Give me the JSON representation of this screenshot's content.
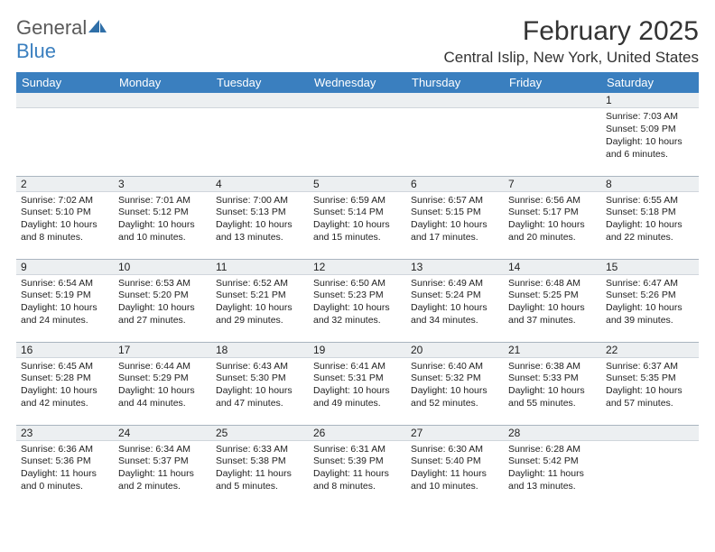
{
  "logo": {
    "general": "General",
    "blue": "Blue"
  },
  "title": "February 2025",
  "location": "Central Islip, New York, United States",
  "weekdays": [
    "Sunday",
    "Monday",
    "Tuesday",
    "Wednesday",
    "Thursday",
    "Friday",
    "Saturday"
  ],
  "colors": {
    "header_bg": "#3a7fbf",
    "header_text": "#ffffff",
    "daynum_bg": "#eceff1",
    "border": "#aab5c0",
    "text": "#222222",
    "logo_gray": "#5a5a5a",
    "logo_blue": "#3a7fbf"
  },
  "fonts": {
    "title_size": 30,
    "location_size": 17,
    "weekday_size": 13,
    "daynum_size": 12,
    "cell_size": 10.5
  },
  "first_weekday_index": 6,
  "days_in_month": 28,
  "days": [
    {
      "n": 1,
      "sunrise": "7:03 AM",
      "sunset": "5:09 PM",
      "dl_h": 10,
      "dl_m": 6
    },
    {
      "n": 2,
      "sunrise": "7:02 AM",
      "sunset": "5:10 PM",
      "dl_h": 10,
      "dl_m": 8
    },
    {
      "n": 3,
      "sunrise": "7:01 AM",
      "sunset": "5:12 PM",
      "dl_h": 10,
      "dl_m": 10
    },
    {
      "n": 4,
      "sunrise": "7:00 AM",
      "sunset": "5:13 PM",
      "dl_h": 10,
      "dl_m": 13
    },
    {
      "n": 5,
      "sunrise": "6:59 AM",
      "sunset": "5:14 PM",
      "dl_h": 10,
      "dl_m": 15
    },
    {
      "n": 6,
      "sunrise": "6:57 AM",
      "sunset": "5:15 PM",
      "dl_h": 10,
      "dl_m": 17
    },
    {
      "n": 7,
      "sunrise": "6:56 AM",
      "sunset": "5:17 PM",
      "dl_h": 10,
      "dl_m": 20
    },
    {
      "n": 8,
      "sunrise": "6:55 AM",
      "sunset": "5:18 PM",
      "dl_h": 10,
      "dl_m": 22
    },
    {
      "n": 9,
      "sunrise": "6:54 AM",
      "sunset": "5:19 PM",
      "dl_h": 10,
      "dl_m": 24
    },
    {
      "n": 10,
      "sunrise": "6:53 AM",
      "sunset": "5:20 PM",
      "dl_h": 10,
      "dl_m": 27
    },
    {
      "n": 11,
      "sunrise": "6:52 AM",
      "sunset": "5:21 PM",
      "dl_h": 10,
      "dl_m": 29
    },
    {
      "n": 12,
      "sunrise": "6:50 AM",
      "sunset": "5:23 PM",
      "dl_h": 10,
      "dl_m": 32
    },
    {
      "n": 13,
      "sunrise": "6:49 AM",
      "sunset": "5:24 PM",
      "dl_h": 10,
      "dl_m": 34
    },
    {
      "n": 14,
      "sunrise": "6:48 AM",
      "sunset": "5:25 PM",
      "dl_h": 10,
      "dl_m": 37
    },
    {
      "n": 15,
      "sunrise": "6:47 AM",
      "sunset": "5:26 PM",
      "dl_h": 10,
      "dl_m": 39
    },
    {
      "n": 16,
      "sunrise": "6:45 AM",
      "sunset": "5:28 PM",
      "dl_h": 10,
      "dl_m": 42
    },
    {
      "n": 17,
      "sunrise": "6:44 AM",
      "sunset": "5:29 PM",
      "dl_h": 10,
      "dl_m": 44
    },
    {
      "n": 18,
      "sunrise": "6:43 AM",
      "sunset": "5:30 PM",
      "dl_h": 10,
      "dl_m": 47
    },
    {
      "n": 19,
      "sunrise": "6:41 AM",
      "sunset": "5:31 PM",
      "dl_h": 10,
      "dl_m": 49
    },
    {
      "n": 20,
      "sunrise": "6:40 AM",
      "sunset": "5:32 PM",
      "dl_h": 10,
      "dl_m": 52
    },
    {
      "n": 21,
      "sunrise": "6:38 AM",
      "sunset": "5:33 PM",
      "dl_h": 10,
      "dl_m": 55
    },
    {
      "n": 22,
      "sunrise": "6:37 AM",
      "sunset": "5:35 PM",
      "dl_h": 10,
      "dl_m": 57
    },
    {
      "n": 23,
      "sunrise": "6:36 AM",
      "sunset": "5:36 PM",
      "dl_h": 11,
      "dl_m": 0
    },
    {
      "n": 24,
      "sunrise": "6:34 AM",
      "sunset": "5:37 PM",
      "dl_h": 11,
      "dl_m": 2
    },
    {
      "n": 25,
      "sunrise": "6:33 AM",
      "sunset": "5:38 PM",
      "dl_h": 11,
      "dl_m": 5
    },
    {
      "n": 26,
      "sunrise": "6:31 AM",
      "sunset": "5:39 PM",
      "dl_h": 11,
      "dl_m": 8
    },
    {
      "n": 27,
      "sunrise": "6:30 AM",
      "sunset": "5:40 PM",
      "dl_h": 11,
      "dl_m": 10
    },
    {
      "n": 28,
      "sunrise": "6:28 AM",
      "sunset": "5:42 PM",
      "dl_h": 11,
      "dl_m": 13
    }
  ],
  "labels": {
    "sunrise": "Sunrise: ",
    "sunset": "Sunset: ",
    "daylight": "Daylight: ",
    "hours": " hours",
    "and": "and ",
    "minutes": " minutes."
  }
}
